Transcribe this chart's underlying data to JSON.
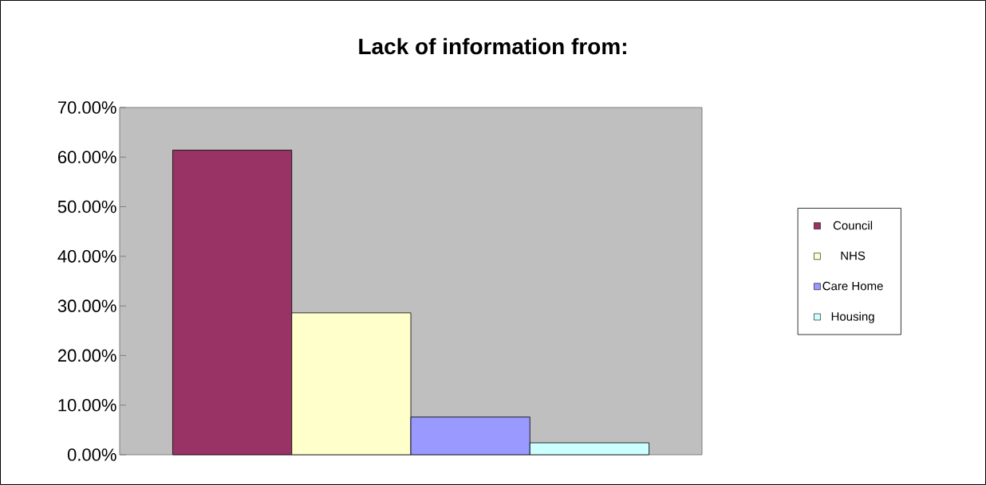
{
  "chart_data": {
    "type": "bar",
    "title": "Lack of information from:",
    "categories": [
      null
    ],
    "series": [
      {
        "name": "Council",
        "color": "#993366",
        "values": [
          61.4
        ]
      },
      {
        "name": "NHS",
        "color": "#ffffcc",
        "values": [
          28.6
        ]
      },
      {
        "name": "Care Home",
        "color": "#9999ff",
        "values": [
          7.6
        ]
      },
      {
        "name": "Housing",
        "color": "#ccffff",
        "values": [
          2.4
        ]
      }
    ],
    "ylim": [
      0,
      70
    ],
    "yticks": [
      {
        "value": 0,
        "label": "0.00%"
      },
      {
        "value": 10,
        "label": "10.00%"
      },
      {
        "value": 20,
        "label": "20.00%"
      },
      {
        "value": 30,
        "label": "30.00%"
      },
      {
        "value": 40,
        "label": "40.00%"
      },
      {
        "value": 50,
        "label": "50.00%"
      },
      {
        "value": 60,
        "label": "60.00%"
      },
      {
        "value": 70,
        "label": "70.00%"
      }
    ],
    "legend": "right"
  }
}
